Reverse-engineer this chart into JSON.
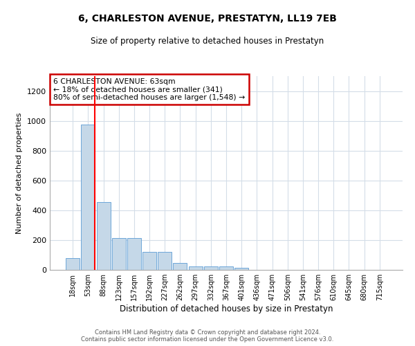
{
  "title": "6, CHARLESTON AVENUE, PRESTATYN, LL19 7EB",
  "subtitle": "Size of property relative to detached houses in Prestatyn",
  "xlabel": "Distribution of detached houses by size in Prestatyn",
  "ylabel": "Number of detached properties",
  "categories": [
    "18sqm",
    "53sqm",
    "88sqm",
    "123sqm",
    "157sqm",
    "192sqm",
    "227sqm",
    "262sqm",
    "297sqm",
    "332sqm",
    "367sqm",
    "401sqm",
    "436sqm",
    "471sqm",
    "506sqm",
    "541sqm",
    "576sqm",
    "610sqm",
    "645sqm",
    "680sqm",
    "715sqm"
  ],
  "bar_heights": [
    80,
    975,
    455,
    215,
    215,
    120,
    120,
    47,
    25,
    25,
    22,
    13,
    0,
    0,
    0,
    0,
    0,
    0,
    0,
    0,
    0
  ],
  "bar_color": "#c5d8e8",
  "bar_edge_color": "#5b9bd5",
  "annotation_line1": "6 CHARLESTON AVENUE: 63sqm",
  "annotation_line2": "← 18% of detached houses are smaller (341)",
  "annotation_line3": "80% of semi-detached houses are larger (1,548) →",
  "annotation_box_color": "#ffffff",
  "annotation_border_color": "#cc0000",
  "ylim": [
    0,
    1300
  ],
  "yticks": [
    0,
    200,
    400,
    600,
    800,
    1000,
    1200
  ],
  "footer_line1": "Contains HM Land Registry data © Crown copyright and database right 2024.",
  "footer_line2": "Contains public sector information licensed under the Open Government Licence v3.0.",
  "background_color": "#ffffff",
  "grid_color": "#d4dde8"
}
